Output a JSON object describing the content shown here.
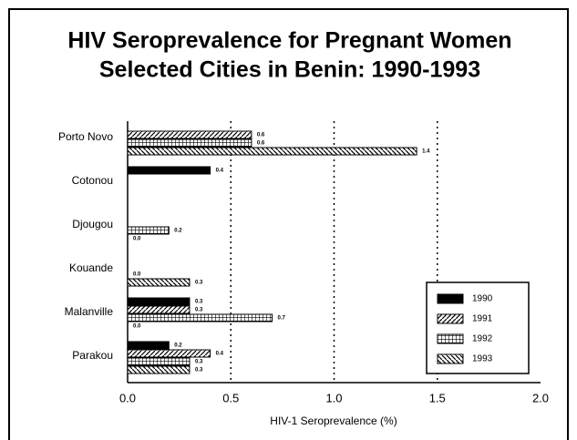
{
  "chart_data": {
    "type": "hbar",
    "title": [
      "HIV Seroprevalence for Pregnant Women",
      "Selected Cities in Benin:  1990-1993"
    ],
    "xlabel": "HIV-1 Seroprevalence (%)",
    "categories": [
      "Porto Novo",
      "Cotonou",
      "Djougou",
      "Kouande",
      "Malanville",
      "Parakou"
    ],
    "series": [
      {
        "name": "1990",
        "color": "#000000",
        "pattern": "solid",
        "values": [
          null,
          0.4,
          null,
          null,
          0.3,
          0.2
        ],
        "value_labels": [
          null,
          "0.4",
          null,
          null,
          "0.3",
          "0.2"
        ]
      },
      {
        "name": "1991",
        "color": "#000000",
        "pattern": "diagonal",
        "values": [
          0.6,
          null,
          null,
          null,
          0.3,
          0.4
        ],
        "value_labels": [
          "0.6",
          null,
          null,
          null,
          "0.3",
          "0.4"
        ]
      },
      {
        "name": "1992",
        "color": "#000000",
        "pattern": "grid",
        "values": [
          0.6,
          null,
          0.2,
          0,
          0.7,
          0.3
        ],
        "value_labels": [
          "0.6",
          null,
          "0.2",
          "0.0",
          "0.7",
          "0.3"
        ]
      },
      {
        "name": "1993",
        "color": "#000000",
        "pattern": "backdiagonal",
        "values": [
          1.4,
          null,
          0,
          0.3,
          0,
          0.3
        ],
        "value_labels": [
          "1.4",
          null,
          "0.0",
          "0.3",
          "0.0",
          "0.3"
        ]
      }
    ],
    "xlim": [
      0,
      2
    ],
    "xticks": [
      {
        "value": 0,
        "label": "0.0"
      },
      {
        "value": 0.5,
        "label": "0.5"
      },
      {
        "value": 1,
        "label": "1.0"
      },
      {
        "value": 1.5,
        "label": "1.5"
      },
      {
        "value": 2,
        "label": "2.0"
      }
    ],
    "grid": true,
    "grid_style": "dotted",
    "legend": "lower right"
  }
}
